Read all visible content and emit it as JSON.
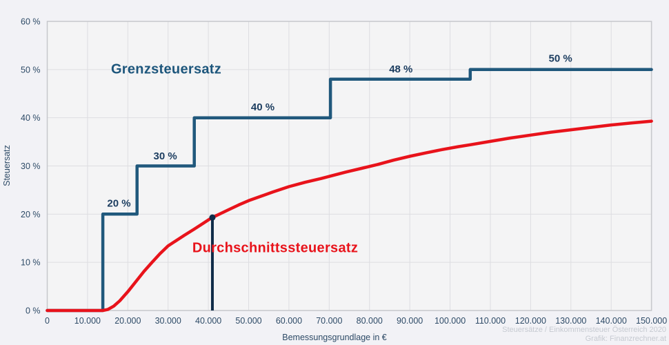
{
  "chart_data": {
    "type": "line",
    "title": "",
    "xlabel": "Bemessungsgrundlage in €",
    "ylabel": "Steuersatz",
    "xlim": [
      0,
      150000
    ],
    "ylim": [
      0,
      60
    ],
    "grid": true,
    "legend": "none",
    "x_ticks": {
      "values": [
        0,
        10000,
        20000,
        30000,
        40000,
        50000,
        60000,
        70000,
        80000,
        90000,
        100000,
        110000,
        120000,
        130000,
        140000,
        150000
      ],
      "labels": [
        "0",
        "10.000",
        "20.000",
        "30.000",
        "40.000",
        "50.000",
        "60.000",
        "70.000",
        "80.000",
        "90.000",
        "100.000",
        "110.000",
        "120.000",
        "130.000",
        "140.000",
        "150.000"
      ]
    },
    "y_ticks": {
      "values": [
        0,
        10,
        20,
        30,
        40,
        50,
        60
      ],
      "labels": [
        "0 %",
        "10 %",
        "20 %",
        "30 %",
        "40 %",
        "50 %",
        "60 %"
      ]
    },
    "series": [
      {
        "name": "Grenzsteuersatz",
        "kind": "step",
        "color": "#20587c",
        "width": 4.5,
        "steps": {
          "bracket_boundaries_eur": [
            13800,
            22300,
            36500,
            70300,
            105000
          ],
          "marginal_rates_pct": [
            20,
            30,
            40,
            48,
            50
          ]
        },
        "points": [
          [
            0,
            0
          ],
          [
            13800,
            0
          ],
          [
            13800,
            20
          ],
          [
            22300,
            20
          ],
          [
            22300,
            30
          ],
          [
            36500,
            30
          ],
          [
            36500,
            40
          ],
          [
            70300,
            40
          ],
          [
            70300,
            48
          ],
          [
            105000,
            48
          ],
          [
            105000,
            50
          ],
          [
            150000,
            50
          ]
        ],
        "step_labels": [
          {
            "text": "20 %",
            "x": 17800,
            "y": 22.1
          },
          {
            "text": "30 %",
            "x": 29300,
            "y": 31.9
          },
          {
            "text": "40 %",
            "x": 53500,
            "y": 42.1
          },
          {
            "text": "48 %",
            "x": 87800,
            "y": 50.0
          },
          {
            "text": "50 %",
            "x": 127400,
            "y": 52.2
          }
        ]
      },
      {
        "name": "Durchschnittssteuersatz",
        "kind": "line",
        "color": "#e8131b",
        "width": 4.5,
        "points": [
          [
            0,
            0
          ],
          [
            13800,
            0
          ],
          [
            15000,
            0.2
          ],
          [
            16500,
            0.9
          ],
          [
            18000,
            2.0
          ],
          [
            20000,
            3.9
          ],
          [
            22000,
            6.0
          ],
          [
            24000,
            8.1
          ],
          [
            26000,
            10.0
          ],
          [
            28000,
            11.8
          ],
          [
            30000,
            13.4
          ],
          [
            32000,
            14.5
          ],
          [
            34000,
            15.6
          ],
          [
            36500,
            16.9
          ],
          [
            38000,
            17.7
          ],
          [
            40000,
            18.8
          ],
          [
            41000,
            19.3
          ],
          [
            43000,
            20.1
          ],
          [
            45000,
            20.9
          ],
          [
            47500,
            21.9
          ],
          [
            50000,
            22.8
          ],
          [
            53000,
            23.7
          ],
          [
            56000,
            24.6
          ],
          [
            60000,
            25.7
          ],
          [
            64000,
            26.6
          ],
          [
            68000,
            27.4
          ],
          [
            70300,
            27.9
          ],
          [
            74000,
            28.7
          ],
          [
            78000,
            29.5
          ],
          [
            82000,
            30.3
          ],
          [
            86000,
            31.2
          ],
          [
            90000,
            32.0
          ],
          [
            94000,
            32.7
          ],
          [
            98000,
            33.4
          ],
          [
            102000,
            34.0
          ],
          [
            105000,
            34.4
          ],
          [
            110000,
            35.1
          ],
          [
            115000,
            35.8
          ],
          [
            120000,
            36.4
          ],
          [
            125000,
            37.0
          ],
          [
            130000,
            37.5
          ],
          [
            135000,
            38.0
          ],
          [
            140000,
            38.5
          ],
          [
            145000,
            38.9
          ],
          [
            150000,
            39.3
          ]
        ]
      }
    ],
    "marker": {
      "x": 41000,
      "y": 19.3,
      "color": "#102c49",
      "line_width": 4,
      "dot_radius": 4.5
    },
    "colors": {
      "background": "#f2f2f6",
      "plot_background": "#f4f4f5",
      "grid": "#dddde1",
      "plot_border": "#c6c7cc",
      "tick_text": "#2d4a66",
      "step_label_text": "#1b3c5f"
    }
  },
  "watermark": {
    "line1": "Steuersätze / Einkommensteuer Österreich 2020",
    "line2": "Grafik: Finanzrechner.at"
  }
}
